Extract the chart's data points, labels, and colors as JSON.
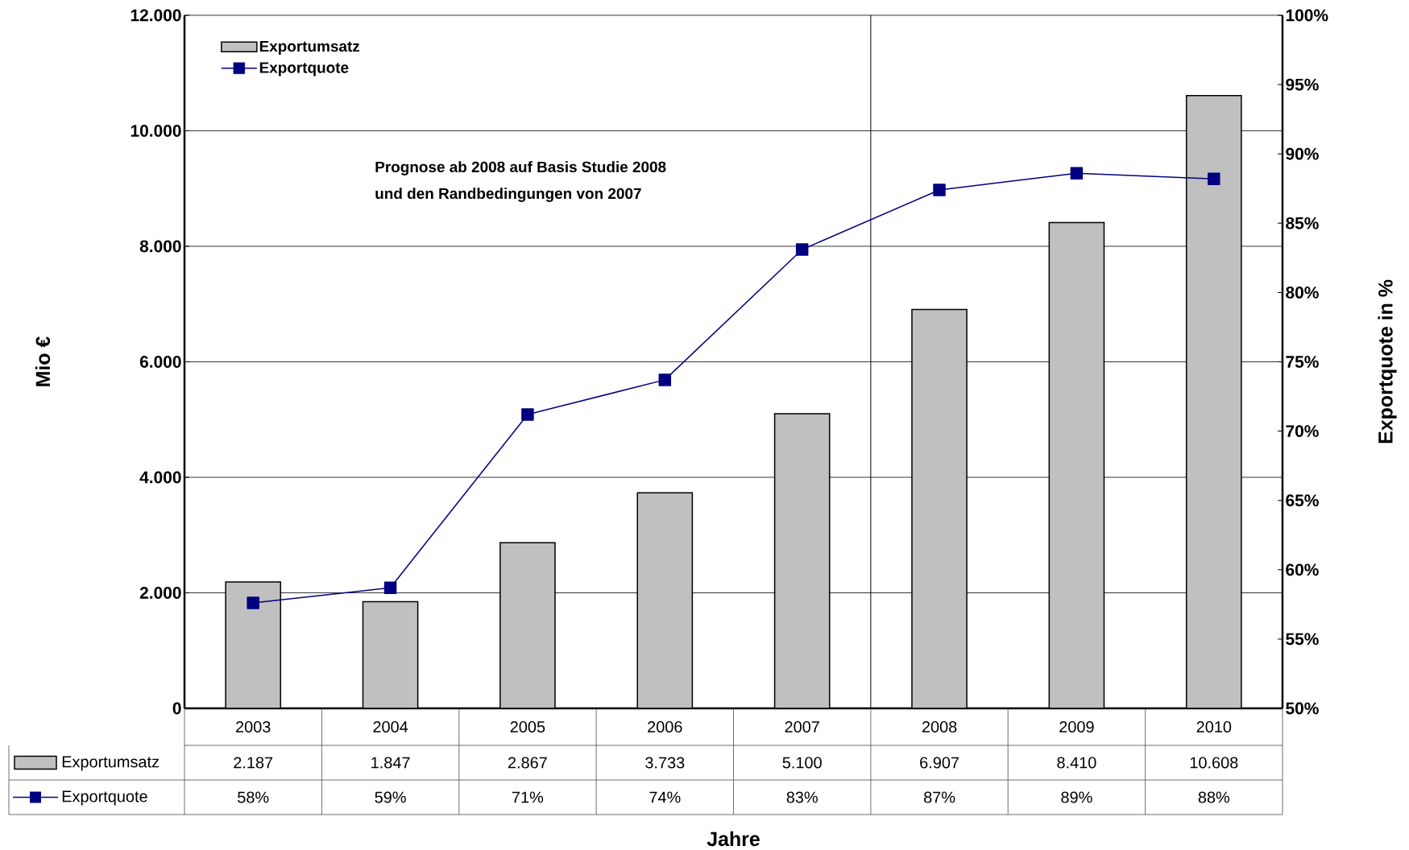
{
  "chart_data": {
    "type": "bar",
    "xlabel": "Jahre",
    "ylabel": "Mio €",
    "y2label": "Exportquote in %",
    "categories": [
      "2003",
      "2004",
      "2005",
      "2006",
      "2007",
      "2008",
      "2009",
      "2010"
    ],
    "series": [
      {
        "name": "Exportumsatz",
        "color": "#c0c0c0",
        "values": [
          2187,
          1847,
          2867,
          3733,
          5100,
          6907,
          8410,
          10608
        ],
        "value_labels": [
          "2.187",
          "1.847",
          "2.867",
          "3.733",
          "5.100",
          "6.907",
          "8.410",
          "10.608"
        ]
      },
      {
        "name": "Exportquote",
        "type": "line",
        "axis": "y2",
        "color": "#000080",
        "values": [
          57.6,
          58.7,
          71.2,
          73.7,
          83.1,
          87.4,
          88.6,
          88.2
        ],
        "value_labels": [
          "58%",
          "59%",
          "71%",
          "74%",
          "83%",
          "87%",
          "89%",
          "88%"
        ]
      }
    ],
    "ylim": [
      0,
      12000
    ],
    "yticks": [
      0,
      {
        "value": 2000,
        "label": "2.000"
      },
      {
        "value": 4000,
        "label": "4.000"
      },
      {
        "value": 6000,
        "label": "6.000"
      },
      {
        "value": 8000,
        "label": "8.000"
      },
      {
        "value": 10000,
        "label": "10.000"
      },
      {
        "value": 12000,
        "label": "12.000"
      }
    ],
    "y2lim": [
      50,
      100
    ],
    "y2ticks": [
      {
        "value": 50,
        "label": "50%"
      },
      {
        "value": 55,
        "label": "55%"
      },
      {
        "value": 60,
        "label": "60%"
      },
      {
        "value": 65,
        "label": "65%"
      },
      {
        "value": 70,
        "label": "70%"
      },
      {
        "value": 75,
        "label": "75%"
      },
      {
        "value": 80,
        "label": "80%"
      },
      {
        "value": 85,
        "label": "85%"
      },
      {
        "value": 90,
        "label": "90%"
      },
      {
        "value": 95,
        "label": "95%"
      },
      {
        "value": 100,
        "label": "100%"
      }
    ],
    "annotations": [
      "Prognose ab 2008 auf Basis Studie 2008",
      "und den Randbedingungen von 2007"
    ],
    "grid": "y",
    "legend": "top left",
    "marker": "square",
    "line_style": "solid"
  }
}
